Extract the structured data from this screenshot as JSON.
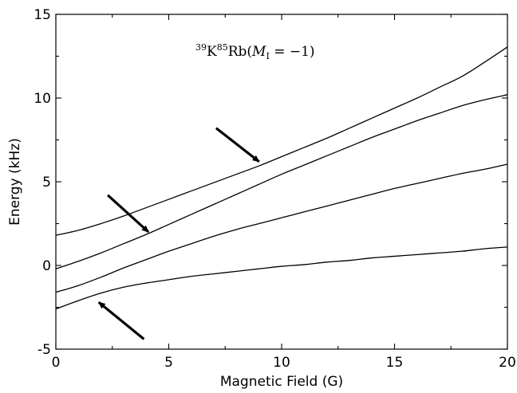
{
  "chart_data": {
    "type": "line",
    "title": {
      "k_mass": "39",
      "k_symbol": "K",
      "rb_mass": "85",
      "rb_symbol": "Rb(",
      "m_symbol": "M",
      "m_subscript": "I",
      "m_value": " = −1)"
    },
    "xlabel": "Magnetic Field (G)",
    "ylabel": "Energy (kHz)",
    "xlim": [
      0,
      20
    ],
    "ylim": [
      -5,
      15
    ],
    "x_ticks": [
      0,
      5,
      10,
      15,
      20
    ],
    "y_ticks": [
      -5,
      0,
      5,
      10,
      15
    ],
    "x_tick_labels": [
      "0",
      "5",
      "10",
      "15",
      "20"
    ],
    "y_tick_labels": [
      "-5",
      "0",
      "5",
      "10",
      "15"
    ],
    "grid": false,
    "series": [
      {
        "x": [
          0,
          1,
          2,
          3,
          4,
          5,
          6,
          7,
          8,
          9,
          10,
          11,
          12,
          13,
          14,
          15,
          16,
          17,
          18,
          19,
          20
        ],
        "y": [
          1.8,
          2.1,
          2.5,
          2.95,
          3.45,
          3.95,
          4.45,
          4.95,
          5.45,
          5.95,
          6.5,
          7.05,
          7.6,
          8.2,
          8.8,
          9.4,
          10.0,
          10.65,
          11.3,
          12.15,
          13.05
        ]
      },
      {
        "x": [
          0,
          1,
          2,
          3,
          4,
          5,
          6,
          7,
          8,
          9,
          10,
          11,
          12,
          13,
          14,
          15,
          16,
          17,
          18,
          19,
          20
        ],
        "y": [
          -0.2,
          0.25,
          0.75,
          1.3,
          1.85,
          2.45,
          3.05,
          3.65,
          4.25,
          4.85,
          5.45,
          6.0,
          6.55,
          7.1,
          7.65,
          8.15,
          8.65,
          9.1,
          9.55,
          9.9,
          10.2
        ]
      },
      {
        "x": [
          0,
          1,
          2,
          3,
          4,
          5,
          6,
          7,
          8,
          9,
          10,
          11,
          12,
          13,
          14,
          15,
          16,
          17,
          18,
          19,
          20
        ],
        "y": [
          -1.6,
          -1.2,
          -0.7,
          -0.15,
          0.35,
          0.85,
          1.3,
          1.75,
          2.15,
          2.5,
          2.85,
          3.2,
          3.55,
          3.9,
          4.25,
          4.6,
          4.9,
          5.2,
          5.5,
          5.75,
          6.05
        ]
      },
      {
        "x": [
          0,
          1,
          2,
          3,
          4,
          5,
          6,
          7,
          8,
          9,
          10,
          11,
          12,
          13,
          14,
          15,
          16,
          17,
          18,
          19,
          20
        ],
        "y": [
          -2.6,
          -2.1,
          -1.65,
          -1.3,
          -1.05,
          -0.85,
          -0.65,
          -0.5,
          -0.35,
          -0.2,
          -0.05,
          0.05,
          0.2,
          0.3,
          0.45,
          0.55,
          0.65,
          0.75,
          0.85,
          1.0,
          1.1
        ]
      }
    ],
    "annotations": [
      {
        "type": "arrow",
        "from": [
          7.1,
          8.2
        ],
        "to": [
          9.0,
          6.2
        ]
      },
      {
        "type": "arrow",
        "from": [
          2.3,
          4.2
        ],
        "to": [
          4.1,
          2.0
        ]
      },
      {
        "type": "arrow",
        "from": [
          3.9,
          -4.4
        ],
        "to": [
          1.9,
          -2.2
        ]
      }
    ]
  }
}
